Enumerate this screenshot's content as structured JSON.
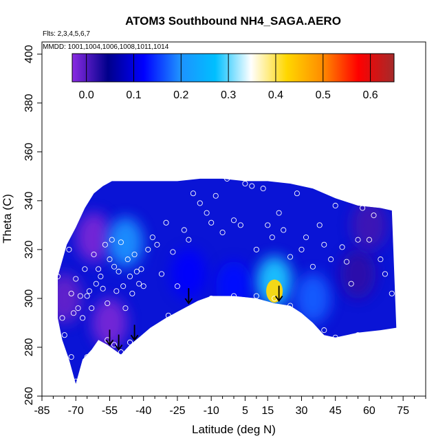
{
  "chart_data": {
    "type": "heatmap",
    "title": "ATOM3 Southbound NH4_SAGA.AERO",
    "subtitle_flights": "Flts: 2,3,4,5,6,7",
    "subtitle_dates": "MMDD: 1001,1004,1006,1008,1011,1014",
    "xlabel": "Latitude (deg N)",
    "ylabel": "Theta (C)",
    "xlim": [
      -85,
      85
    ],
    "ylim": [
      260,
      405
    ],
    "x_ticks": [
      -85,
      -70,
      -55,
      -40,
      -25,
      -10,
      5,
      15,
      30,
      45,
      60,
      75
    ],
    "x_tick_labels": [
      "-85",
      "-70",
      "-55",
      "-40",
      "-25",
      "-10",
      "5",
      "15",
      "30",
      "45",
      "60",
      "75"
    ],
    "y_ticks": [
      260,
      280,
      300,
      320,
      340,
      360,
      380,
      400
    ],
    "y_tick_labels": [
      "260",
      "280",
      "300",
      "320",
      "340",
      "360",
      "380",
      "400"
    ],
    "colorbar": {
      "range": [
        -0.03,
        0.65
      ],
      "ticks": [
        0.0,
        0.1,
        0.2,
        0.3,
        0.4,
        0.5,
        0.6
      ],
      "tick_labels": [
        "0.0",
        "0.1",
        "0.2",
        "0.3",
        "0.4",
        "0.5",
        "0.6"
      ],
      "colors": [
        "#8a2be2",
        "#00008b",
        "#0000ff",
        "#1e90ff",
        "#00bfff",
        "#ffffff",
        "#ffd700",
        "#ff8c00",
        "#ff0000",
        "#a52a2a"
      ]
    },
    "field_boundary_upper": [
      [
        -78,
        309
      ],
      [
        -74,
        322
      ],
      [
        -70,
        329
      ],
      [
        -66,
        337
      ],
      [
        -62,
        343
      ],
      [
        -58,
        346
      ],
      [
        -54,
        348
      ],
      [
        -45,
        348
      ],
      [
        -35,
        348
      ],
      [
        -25,
        348
      ],
      [
        -15,
        349
      ],
      [
        -5,
        349
      ],
      [
        5,
        348
      ],
      [
        15,
        348
      ],
      [
        25,
        347
      ],
      [
        35,
        345
      ],
      [
        45,
        341
      ],
      [
        55,
        338
      ],
      [
        65,
        337
      ],
      [
        70,
        336
      ]
    ],
    "field_boundary_lower": [
      [
        -78,
        292
      ],
      [
        -76,
        283
      ],
      [
        -73,
        275
      ],
      [
        -70,
        265
      ],
      [
        -67,
        275
      ],
      [
        -63,
        279
      ],
      [
        -60,
        283
      ],
      [
        -56,
        281
      ],
      [
        -53,
        279
      ],
      [
        -50,
        277
      ],
      [
        -46,
        281
      ],
      [
        -42,
        284
      ],
      [
        -37,
        288
      ],
      [
        -30,
        292
      ],
      [
        -22,
        296
      ],
      [
        -16,
        299
      ],
      [
        -10,
        301
      ],
      [
        0,
        301
      ],
      [
        10,
        300
      ],
      [
        18,
        298
      ],
      [
        25,
        297
      ],
      [
        30,
        294
      ],
      [
        35,
        290
      ],
      [
        40,
        285
      ],
      [
        45,
        284
      ],
      [
        55,
        286
      ],
      [
        65,
        287
      ],
      [
        72,
        288
      ]
    ],
    "concentration_blobs": [
      {
        "lat": -75,
        "theta": 300,
        "value": -0.01
      },
      {
        "lat": -62,
        "theta": 325,
        "value": -0.02
      },
      {
        "lat": -55,
        "theta": 290,
        "value": -0.02
      },
      {
        "lat": -48,
        "theta": 323,
        "value": 0.2
      },
      {
        "lat": -20,
        "theta": 310,
        "value": 0.12
      },
      {
        "lat": 0,
        "theta": 305,
        "value": 0.13
      },
      {
        "lat": 18,
        "theta": 307,
        "value": 0.28
      },
      {
        "lat": 18,
        "theta": 303,
        "value": 0.42
      },
      {
        "lat": 35,
        "theta": 300,
        "value": 0.17
      },
      {
        "lat": 55,
        "theta": 310,
        "value": 0.02
      },
      {
        "lat": 60,
        "theta": 330,
        "value": 0.01
      }
    ],
    "sample_points": [
      [
        -78,
        309
      ],
      [
        -76,
        292
      ],
      [
        -75,
        285
      ],
      [
        -73,
        320
      ],
      [
        -72,
        302
      ],
      [
        -71,
        294
      ],
      [
        -70,
        308
      ],
      [
        -69,
        296
      ],
      [
        -68,
        301
      ],
      [
        -67,
        292
      ],
      [
        -66,
        312
      ],
      [
        -65,
        301
      ],
      [
        -64,
        303
      ],
      [
        -63,
        296
      ],
      [
        -62,
        318
      ],
      [
        -61,
        306
      ],
      [
        -60,
        312
      ],
      [
        -59,
        309
      ],
      [
        -58,
        304
      ],
      [
        -57,
        322
      ],
      [
        -56,
        298
      ],
      [
        -55,
        316
      ],
      [
        -54,
        324
      ],
      [
        -53,
        313
      ],
      [
        -52,
        303
      ],
      [
        -51,
        311
      ],
      [
        -50,
        323
      ],
      [
        -49,
        305
      ],
      [
        -48,
        296
      ],
      [
        -47,
        316
      ],
      [
        -46,
        309
      ],
      [
        -45,
        302
      ],
      [
        -44,
        318
      ],
      [
        -43,
        311
      ],
      [
        -42,
        306
      ],
      [
        -41,
        312
      ],
      [
        -40,
        305
      ],
      [
        -38,
        320
      ],
      [
        -36,
        325
      ],
      [
        -34,
        322
      ],
      [
        -32,
        310
      ],
      [
        -30,
        331
      ],
      [
        -27,
        319
      ],
      [
        -25,
        305
      ],
      [
        -22,
        328
      ],
      [
        -20,
        324
      ],
      [
        -18,
        343
      ],
      [
        -15,
        339
      ],
      [
        -12,
        335
      ],
      [
        -10,
        331
      ],
      [
        -8,
        342
      ],
      [
        -5,
        327
      ],
      [
        -3,
        349
      ],
      [
        0,
        332
      ],
      [
        3,
        330
      ],
      [
        5,
        347
      ],
      [
        8,
        346
      ],
      [
        10,
        320
      ],
      [
        13,
        345
      ],
      [
        15,
        330
      ],
      [
        17,
        325
      ],
      [
        20,
        335
      ],
      [
        22,
        328
      ],
      [
        25,
        317
      ],
      [
        28,
        343
      ],
      [
        30,
        320
      ],
      [
        32,
        325
      ],
      [
        35,
        313
      ],
      [
        38,
        330
      ],
      [
        40,
        322
      ],
      [
        43,
        316
      ],
      [
        45,
        338
      ],
      [
        48,
        321
      ],
      [
        50,
        315
      ],
      [
        52,
        306
      ],
      [
        55,
        324
      ],
      [
        57,
        337
      ],
      [
        60,
        324
      ],
      [
        62,
        334
      ],
      [
        65,
        316
      ],
      [
        67,
        310
      ],
      [
        70,
        302
      ],
      [
        -72,
        276
      ],
      [
        -70,
        266
      ],
      [
        -65,
        276
      ],
      [
        -60,
        280
      ],
      [
        -56,
        283
      ],
      [
        -53,
        281
      ],
      [
        -50,
        278
      ],
      [
        -46,
        282
      ],
      [
        -29,
        293
      ],
      [
        -22,
        294
      ],
      [
        -10,
        300
      ],
      [
        0,
        301
      ],
      [
        10,
        301
      ],
      [
        18,
        300
      ],
      [
        25,
        297
      ],
      [
        30,
        291
      ],
      [
        35,
        288
      ],
      [
        40,
        287
      ],
      [
        45,
        284
      ],
      [
        55,
        285
      ],
      [
        70,
        285
      ]
    ],
    "arrows": [
      {
        "lat": -55,
        "theta": 281
      },
      {
        "lat": -51,
        "theta": 279
      },
      {
        "lat": -44,
        "theta": 283
      },
      {
        "lat": -20,
        "theta": 298
      },
      {
        "lat": 20,
        "theta": 299
      }
    ]
  }
}
